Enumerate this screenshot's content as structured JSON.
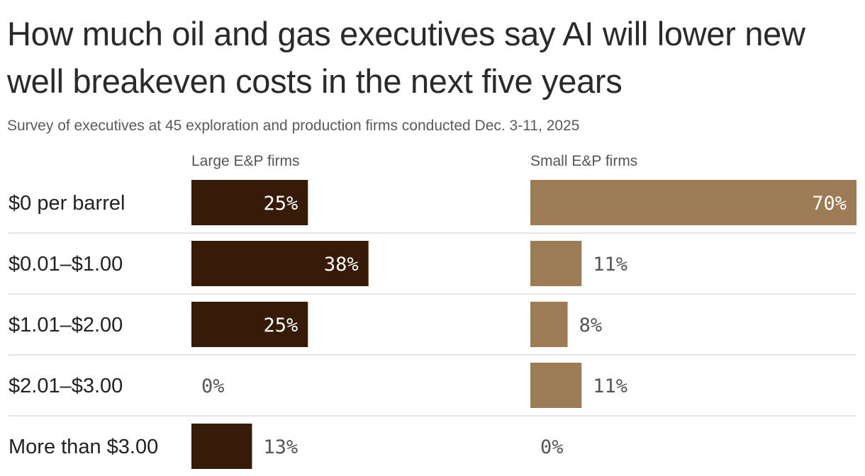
{
  "title": "How much oil and gas executives say AI will lower new well breakeven costs in the next five years",
  "subtitle": "Survey of executives at 45 exploration and production firms conducted Dec. 3-11, 2025",
  "colors": {
    "large": "#361c08",
    "small": "#9c7b55",
    "divider": "#dddddd",
    "value_outside": "#555555",
    "value_inside": "#ffffff"
  },
  "chart_data": {
    "type": "bar",
    "orientation": "horizontal",
    "categories": [
      "$0 per barrel",
      "$0.01–$1.00",
      "$1.01–$2.00",
      "$2.01–$3.00",
      "More than $3.00"
    ],
    "xlim": [
      0,
      70
    ],
    "unit": "%",
    "series": [
      {
        "name": "Large E&P firms",
        "values": [
          25,
          38,
          25,
          0,
          13
        ]
      },
      {
        "name": "Small E&P firms",
        "values": [
          70,
          11,
          8,
          11,
          0
        ]
      }
    ]
  }
}
